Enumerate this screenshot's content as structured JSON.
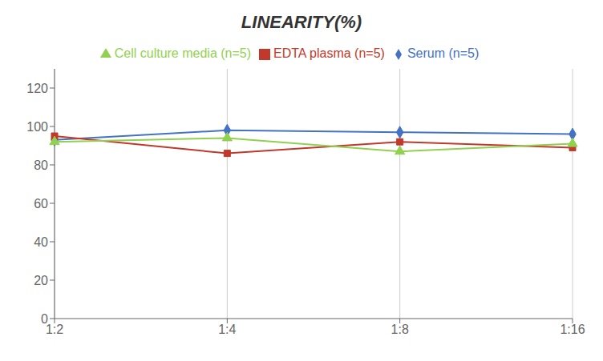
{
  "chart_data": {
    "type": "line",
    "title": "LINEARITY(%)",
    "categories": [
      "1:2",
      "1:4",
      "1:8",
      "1:16"
    ],
    "series": [
      {
        "name": "Serum (n=5)",
        "color": "#4472C4",
        "marker": "diamond",
        "values": [
          93,
          98,
          97,
          96
        ]
      },
      {
        "name": "EDTA plasma (n=5)",
        "color": "#C0392B",
        "marker": "square",
        "values": [
          95,
          86,
          92,
          89
        ]
      },
      {
        "name": "Cell culture media (n=5)",
        "color": "#92D050",
        "marker": "triangle",
        "values": [
          92,
          94,
          87,
          91
        ]
      }
    ],
    "ylim": [
      0,
      130
    ],
    "yticks": [
      0,
      20,
      40,
      60,
      80,
      100,
      120
    ],
    "grid": true,
    "legend": "top"
  }
}
